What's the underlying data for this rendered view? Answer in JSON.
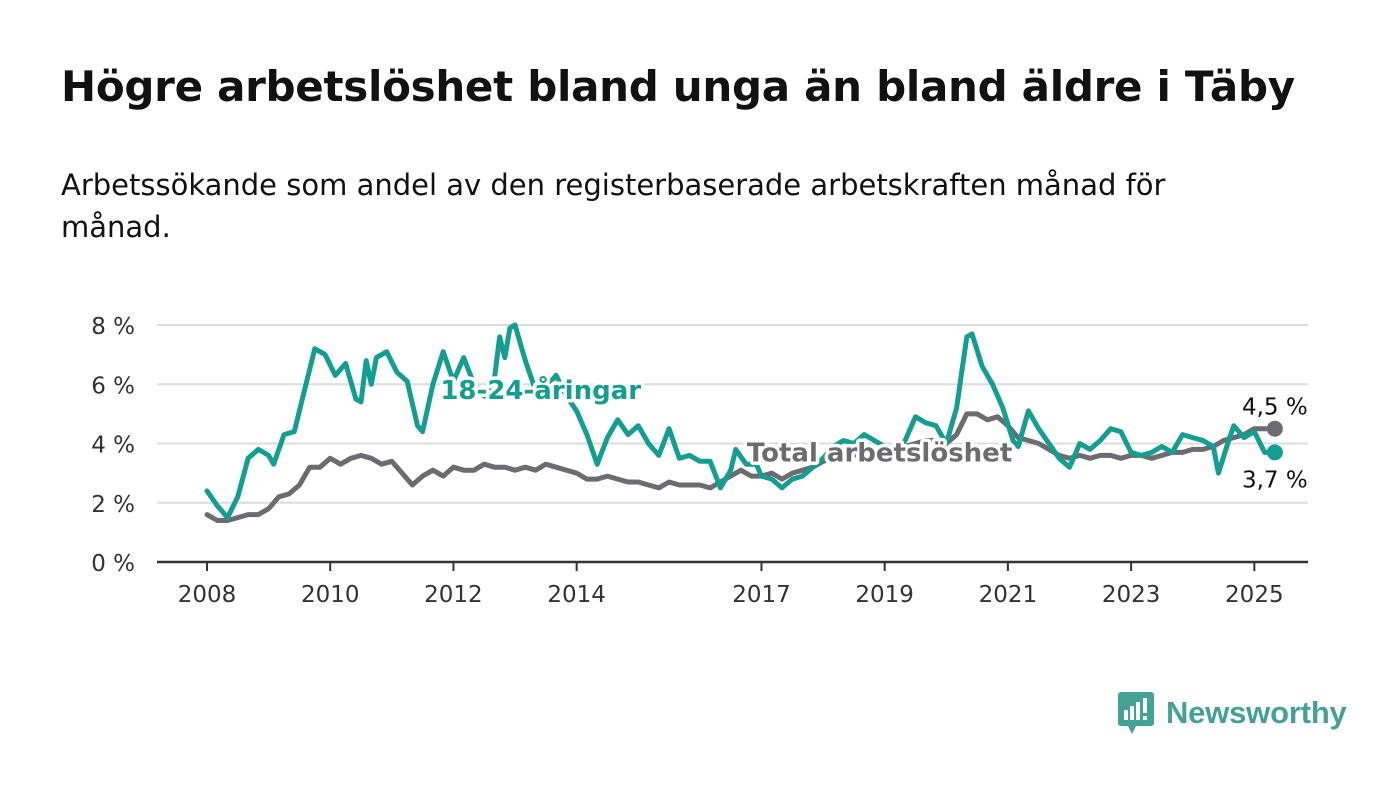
{
  "chart_data": {
    "type": "line",
    "title": "Högre arbetslöshet bland unga än bland äldre i Täby",
    "subtitle": "Arbetssökande som andel av den registerbaserade arbetskraften månad för månad.",
    "xlabel": "",
    "ylabel": "",
    "ylim": [
      0,
      8
    ],
    "y_ticks": [
      {
        "value": 0,
        "label": "0 %"
      },
      {
        "value": 2,
        "label": "2 %"
      },
      {
        "value": 4,
        "label": "4 %"
      },
      {
        "value": 6,
        "label": "6 %"
      },
      {
        "value": 8,
        "label": "8 %"
      }
    ],
    "x_range": [
      "2008-01",
      "2025-06"
    ],
    "x_ticks": [
      {
        "date": "2008-01",
        "label": "2008"
      },
      {
        "date": "2010-01",
        "label": "2010"
      },
      {
        "date": "2012-01",
        "label": "2012"
      },
      {
        "date": "2014-01",
        "label": "2014"
      },
      {
        "date": "2017-01",
        "label": "2017"
      },
      {
        "date": "2019-01",
        "label": "2019"
      },
      {
        "date": "2021-01",
        "label": "2021"
      },
      {
        "date": "2023-01",
        "label": "2023"
      },
      {
        "date": "2025-01",
        "label": "2025"
      }
    ],
    "grid": true,
    "legend": "none",
    "series": [
      {
        "name": "18-24-åringar",
        "color": "#139e91",
        "label_position": "center",
        "points": [
          [
            "2008-01",
            2.4
          ],
          [
            "2008-03",
            1.9
          ],
          [
            "2008-05",
            1.5
          ],
          [
            "2008-07",
            2.2
          ],
          [
            "2008-09",
            3.5
          ],
          [
            "2008-11",
            3.8
          ],
          [
            "2009-01",
            3.6
          ],
          [
            "2009-02",
            3.3
          ],
          [
            "2009-04",
            4.3
          ],
          [
            "2009-06",
            4.4
          ],
          [
            "2009-08",
            5.8
          ],
          [
            "2009-10",
            7.2
          ],
          [
            "2009-12",
            7.0
          ],
          [
            "2010-02",
            6.3
          ],
          [
            "2010-04",
            6.7
          ],
          [
            "2010-06",
            5.5
          ],
          [
            "2010-07",
            5.4
          ],
          [
            "2010-08",
            6.8
          ],
          [
            "2010-09",
            6.0
          ],
          [
            "2010-10",
            6.9
          ],
          [
            "2010-12",
            7.1
          ],
          [
            "2011-02",
            6.4
          ],
          [
            "2011-04",
            6.1
          ],
          [
            "2011-06",
            4.6
          ],
          [
            "2011-07",
            4.4
          ],
          [
            "2011-09",
            6.0
          ],
          [
            "2011-11",
            7.1
          ],
          [
            "2012-01",
            6.1
          ],
          [
            "2012-03",
            6.9
          ],
          [
            "2012-05",
            6.0
          ],
          [
            "2012-07",
            5.6
          ],
          [
            "2012-09",
            6.2
          ],
          [
            "2012-10",
            7.6
          ],
          [
            "2012-11",
            6.9
          ],
          [
            "2012-12",
            7.9
          ],
          [
            "2013-01",
            8.0
          ],
          [
            "2013-03",
            6.8
          ],
          [
            "2013-05",
            5.8
          ],
          [
            "2013-07",
            5.9
          ],
          [
            "2013-09",
            6.3
          ],
          [
            "2013-11",
            5.6
          ],
          [
            "2014-01",
            5.1
          ],
          [
            "2014-03",
            4.3
          ],
          [
            "2014-05",
            3.3
          ],
          [
            "2014-07",
            4.2
          ],
          [
            "2014-09",
            4.8
          ],
          [
            "2014-11",
            4.3
          ],
          [
            "2015-01",
            4.6
          ],
          [
            "2015-03",
            4.0
          ],
          [
            "2015-05",
            3.6
          ],
          [
            "2015-07",
            4.5
          ],
          [
            "2015-09",
            3.5
          ],
          [
            "2015-11",
            3.6
          ],
          [
            "2016-01",
            3.4
          ],
          [
            "2016-03",
            3.4
          ],
          [
            "2016-05",
            2.5
          ],
          [
            "2016-07",
            3.1
          ],
          [
            "2016-08",
            3.8
          ],
          [
            "2016-10",
            3.3
          ],
          [
            "2016-12",
            3.3
          ],
          [
            "2017-01",
            2.9
          ],
          [
            "2017-03",
            2.8
          ],
          [
            "2017-05",
            2.5
          ],
          [
            "2017-07",
            2.8
          ],
          [
            "2017-09",
            2.9
          ],
          [
            "2017-11",
            3.2
          ],
          [
            "2018-01",
            3.5
          ],
          [
            "2018-03",
            3.9
          ],
          [
            "2018-05",
            4.1
          ],
          [
            "2018-07",
            4.0
          ],
          [
            "2018-09",
            4.3
          ],
          [
            "2018-11",
            4.1
          ],
          [
            "2019-01",
            3.9
          ],
          [
            "2019-03",
            3.8
          ],
          [
            "2019-05",
            4.1
          ],
          [
            "2019-07",
            4.9
          ],
          [
            "2019-09",
            4.7
          ],
          [
            "2019-11",
            4.6
          ],
          [
            "2020-01",
            4.0
          ],
          [
            "2020-03",
            5.2
          ],
          [
            "2020-05",
            7.6
          ],
          [
            "2020-06",
            7.7
          ],
          [
            "2020-08",
            6.6
          ],
          [
            "2020-10",
            6.0
          ],
          [
            "2020-12",
            5.2
          ],
          [
            "2021-02",
            4.1
          ],
          [
            "2021-03",
            3.9
          ],
          [
            "2021-05",
            5.1
          ],
          [
            "2021-07",
            4.5
          ],
          [
            "2021-09",
            4.0
          ],
          [
            "2021-11",
            3.5
          ],
          [
            "2022-01",
            3.2
          ],
          [
            "2022-03",
            4.0
          ],
          [
            "2022-05",
            3.8
          ],
          [
            "2022-07",
            4.1
          ],
          [
            "2022-09",
            4.5
          ],
          [
            "2022-11",
            4.4
          ],
          [
            "2023-01",
            3.7
          ],
          [
            "2023-03",
            3.6
          ],
          [
            "2023-05",
            3.7
          ],
          [
            "2023-07",
            3.9
          ],
          [
            "2023-09",
            3.7
          ],
          [
            "2023-11",
            4.3
          ],
          [
            "2024-01",
            4.2
          ],
          [
            "2024-03",
            4.1
          ],
          [
            "2024-05",
            3.9
          ],
          [
            "2024-06",
            3.0
          ],
          [
            "2024-08",
            4.1
          ],
          [
            "2024-09",
            4.6
          ],
          [
            "2024-11",
            4.2
          ],
          [
            "2025-01",
            4.4
          ],
          [
            "2025-03",
            3.7
          ],
          [
            "2025-05",
            3.7
          ]
        ],
        "end_label": "3,7 %"
      },
      {
        "name": "Total arbetslöshet",
        "color": "#6b6b70",
        "label_position": "center",
        "points": [
          [
            "2008-01",
            1.6
          ],
          [
            "2008-03",
            1.4
          ],
          [
            "2008-05",
            1.4
          ],
          [
            "2008-07",
            1.5
          ],
          [
            "2008-09",
            1.6
          ],
          [
            "2008-11",
            1.6
          ],
          [
            "2009-01",
            1.8
          ],
          [
            "2009-03",
            2.2
          ],
          [
            "2009-05",
            2.3
          ],
          [
            "2009-07",
            2.6
          ],
          [
            "2009-09",
            3.2
          ],
          [
            "2009-11",
            3.2
          ],
          [
            "2010-01",
            3.5
          ],
          [
            "2010-03",
            3.3
          ],
          [
            "2010-05",
            3.5
          ],
          [
            "2010-07",
            3.6
          ],
          [
            "2010-09",
            3.5
          ],
          [
            "2010-11",
            3.3
          ],
          [
            "2011-01",
            3.4
          ],
          [
            "2011-03",
            3.0
          ],
          [
            "2011-05",
            2.6
          ],
          [
            "2011-07",
            2.9
          ],
          [
            "2011-09",
            3.1
          ],
          [
            "2011-11",
            2.9
          ],
          [
            "2012-01",
            3.2
          ],
          [
            "2012-03",
            3.1
          ],
          [
            "2012-05",
            3.1
          ],
          [
            "2012-07",
            3.3
          ],
          [
            "2012-09",
            3.2
          ],
          [
            "2012-11",
            3.2
          ],
          [
            "2013-01",
            3.1
          ],
          [
            "2013-03",
            3.2
          ],
          [
            "2013-05",
            3.1
          ],
          [
            "2013-07",
            3.3
          ],
          [
            "2013-09",
            3.2
          ],
          [
            "2013-11",
            3.1
          ],
          [
            "2014-01",
            3.0
          ],
          [
            "2014-03",
            2.8
          ],
          [
            "2014-05",
            2.8
          ],
          [
            "2014-07",
            2.9
          ],
          [
            "2014-09",
            2.8
          ],
          [
            "2014-11",
            2.7
          ],
          [
            "2015-01",
            2.7
          ],
          [
            "2015-03",
            2.6
          ],
          [
            "2015-05",
            2.5
          ],
          [
            "2015-07",
            2.7
          ],
          [
            "2015-09",
            2.6
          ],
          [
            "2015-11",
            2.6
          ],
          [
            "2016-01",
            2.6
          ],
          [
            "2016-03",
            2.5
          ],
          [
            "2016-05",
            2.7
          ],
          [
            "2016-07",
            2.9
          ],
          [
            "2016-09",
            3.1
          ],
          [
            "2016-11",
            2.9
          ],
          [
            "2017-01",
            2.9
          ],
          [
            "2017-03",
            3.0
          ],
          [
            "2017-05",
            2.8
          ],
          [
            "2017-07",
            3.0
          ],
          [
            "2017-09",
            3.1
          ],
          [
            "2017-11",
            3.2
          ],
          [
            "2018-01",
            3.4
          ],
          [
            "2018-03",
            3.5
          ],
          [
            "2018-05",
            3.6
          ],
          [
            "2018-07",
            3.6
          ],
          [
            "2018-09",
            3.7
          ],
          [
            "2018-11",
            3.7
          ],
          [
            "2019-01",
            3.8
          ],
          [
            "2019-03",
            3.8
          ],
          [
            "2019-05",
            3.9
          ],
          [
            "2019-07",
            4.0
          ],
          [
            "2019-09",
            4.1
          ],
          [
            "2019-11",
            4.1
          ],
          [
            "2020-01",
            4.0
          ],
          [
            "2020-03",
            4.3
          ],
          [
            "2020-05",
            5.0
          ],
          [
            "2020-07",
            5.0
          ],
          [
            "2020-09",
            4.8
          ],
          [
            "2020-11",
            4.9
          ],
          [
            "2021-01",
            4.6
          ],
          [
            "2021-03",
            4.2
          ],
          [
            "2021-05",
            4.1
          ],
          [
            "2021-07",
            4.0
          ],
          [
            "2021-09",
            3.8
          ],
          [
            "2021-11",
            3.6
          ],
          [
            "2022-01",
            3.5
          ],
          [
            "2022-03",
            3.6
          ],
          [
            "2022-05",
            3.5
          ],
          [
            "2022-07",
            3.6
          ],
          [
            "2022-09",
            3.6
          ],
          [
            "2022-11",
            3.5
          ],
          [
            "2023-01",
            3.6
          ],
          [
            "2023-03",
            3.6
          ],
          [
            "2023-05",
            3.5
          ],
          [
            "2023-07",
            3.6
          ],
          [
            "2023-09",
            3.7
          ],
          [
            "2023-11",
            3.7
          ],
          [
            "2024-01",
            3.8
          ],
          [
            "2024-03",
            3.8
          ],
          [
            "2024-05",
            3.9
          ],
          [
            "2024-07",
            4.1
          ],
          [
            "2024-09",
            4.2
          ],
          [
            "2024-11",
            4.3
          ],
          [
            "2025-01",
            4.5
          ],
          [
            "2025-03",
            4.5
          ],
          [
            "2025-05",
            4.5
          ]
        ],
        "end_label": "4,5 %"
      }
    ]
  },
  "brand": {
    "name": "Newsworthy",
    "color": "#44a196"
  },
  "colors": {
    "axis": "#333333",
    "grid": "#dcdcdc",
    "tick_text": "#333333"
  }
}
